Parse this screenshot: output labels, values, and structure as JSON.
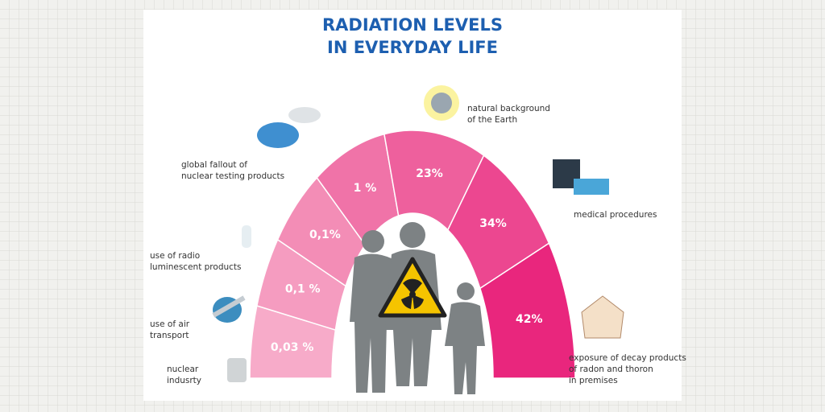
{
  "title": [
    "RADIATION LEVELS",
    "IN EVERYDAY LIFE"
  ],
  "segments": [
    {
      "value": "0,03 %",
      "label": [
        "nuclear",
        "indusrty"
      ]
    },
    {
      "value": "0,1 %",
      "label": [
        "use of air",
        "transport"
      ]
    },
    {
      "value": "0,1%",
      "label": [
        "use of radio",
        "luminescent products"
      ]
    },
    {
      "value": "1 %",
      "label": [
        "global fallout of",
        "nuclear testing products"
      ]
    },
    {
      "value": "23%",
      "label": [
        "natural background",
        "of the Earth"
      ]
    },
    {
      "value": "34%",
      "label": [
        "medical procedures"
      ]
    },
    {
      "value": "42%",
      "label": [
        "exposure of decay products",
        "of radon and thoron",
        "in premises"
      ]
    }
  ]
}
